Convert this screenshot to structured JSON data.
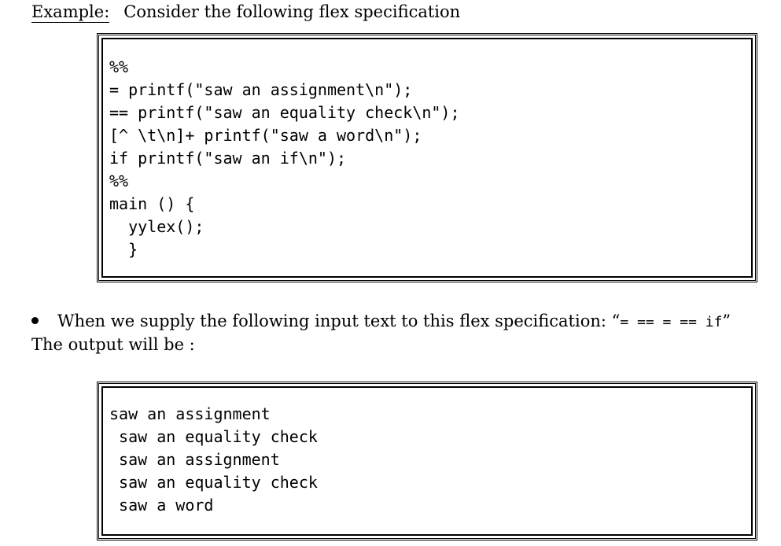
{
  "heading": {
    "label": "Example:",
    "description": "Consider the following flex specification"
  },
  "spec_code": [
    "%%",
    "= printf(\"saw an assignment\\n\");",
    "== printf(\"saw an equality check\\n\");",
    "[^ \\t\\n]+ printf(\"saw a word\\n\");",
    "if printf(\"saw an if\\n\");",
    "%%",
    "main () {",
    "  yylex();",
    "  }"
  ],
  "bullet": {
    "text": "When we supply the following input text to this flex specification: “",
    "input_text": "= == = == if",
    "close_quote": "”"
  },
  "output_intro": "The output will be :",
  "output_lines": [
    "saw an assignment",
    " saw an equality check",
    " saw an assignment",
    " saw an equality check",
    " saw a word"
  ]
}
